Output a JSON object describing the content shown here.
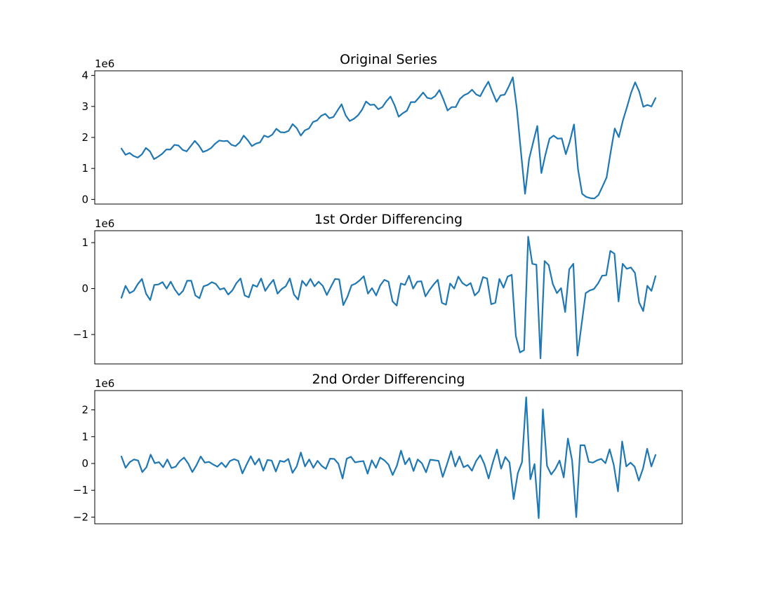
{
  "chart_data": [
    {
      "type": "line",
      "title": "Original Series",
      "offset_text": "1e6",
      "xlabel": "",
      "ylabel": "",
      "ylim": [
        -0.15,
        4.15
      ],
      "yticks": [
        0,
        1,
        2,
        3,
        4
      ],
      "ytick_labels": [
        "0",
        "1",
        "2",
        "3",
        "4"
      ],
      "grid": false,
      "color": "#1f77b4",
      "values": [
        1.64,
        1.44,
        1.5,
        1.4,
        1.35,
        1.45,
        1.66,
        1.55,
        1.3,
        1.38,
        1.47,
        1.61,
        1.61,
        1.76,
        1.74,
        1.6,
        1.55,
        1.72,
        1.89,
        1.74,
        1.53,
        1.58,
        1.66,
        1.8,
        1.9,
        1.88,
        1.89,
        1.76,
        1.72,
        1.84,
        2.06,
        1.91,
        1.72,
        1.8,
        1.84,
        2.06,
        2.01,
        2.09,
        2.28,
        2.17,
        2.16,
        2.21,
        2.43,
        2.3,
        2.06,
        2.23,
        2.29,
        2.5,
        2.55,
        2.7,
        2.76,
        2.62,
        2.66,
        2.87,
        3.07,
        2.71,
        2.53,
        2.6,
        2.71,
        2.89,
        3.16,
        3.05,
        3.06,
        2.91,
        2.98,
        3.17,
        3.32,
        3.04,
        2.67,
        2.78,
        2.86,
        3.14,
        3.14,
        3.29,
        3.45,
        3.28,
        3.25,
        3.34,
        3.53,
        3.22,
        2.87,
        2.98,
        2.98,
        3.24,
        3.36,
        3.42,
        3.54,
        3.39,
        3.33,
        3.58,
        3.8,
        3.46,
        3.15,
        3.36,
        3.38,
        3.64,
        3.94,
        2.91,
        1.52,
        0.18,
        1.31,
        1.85,
        2.37,
        0.85,
        1.45,
        1.96,
        2.06,
        1.96,
        1.97,
        1.46,
        1.88,
        2.42,
        0.96,
        0.18,
        0.08,
        0.04,
        0.03,
        0.14,
        0.42,
        0.71,
        1.53,
        2.29,
        2.01,
        2.55,
        2.98,
        3.44,
        3.78,
        3.48,
        2.99,
        3.05,
        3.0,
        3.27
      ]
    },
    {
      "type": "line",
      "title": "1st Order Differencing",
      "offset_text": "1e6",
      "xlabel": "",
      "ylabel": "",
      "ylim": [
        -1.64,
        1.26
      ],
      "yticks": [
        -1,
        0,
        1
      ],
      "ytick_labels": [
        "−1",
        "0",
        "1"
      ],
      "grid": false,
      "color": "#1f77b4",
      "values": [
        -0.2,
        0.06,
        -0.1,
        -0.05,
        0.1,
        0.21,
        -0.11,
        -0.25,
        0.08,
        0.09,
        0.14,
        0.0,
        0.15,
        -0.02,
        -0.14,
        -0.05,
        0.17,
        0.17,
        -0.15,
        -0.21,
        0.05,
        0.08,
        0.14,
        0.1,
        -0.02,
        0.01,
        -0.13,
        -0.04,
        0.12,
        0.22,
        -0.15,
        -0.19,
        0.08,
        0.04,
        0.22,
        -0.05,
        0.08,
        0.19,
        -0.11,
        -0.01,
        0.05,
        0.22,
        -0.13,
        -0.24,
        0.17,
        0.06,
        0.21,
        0.05,
        0.15,
        0.06,
        -0.14,
        0.04,
        0.21,
        0.2,
        -0.36,
        -0.18,
        0.07,
        0.11,
        0.18,
        0.27,
        -0.11,
        0.01,
        -0.15,
        0.07,
        0.19,
        0.15,
        -0.28,
        -0.37,
        0.11,
        0.08,
        0.28,
        0.0,
        0.15,
        0.16,
        -0.17,
        -0.03,
        0.09,
        0.19,
        -0.31,
        -0.35,
        0.11,
        0.0,
        0.26,
        0.12,
        0.06,
        0.12,
        -0.15,
        -0.06,
        0.25,
        0.22,
        -0.34,
        -0.31,
        0.21,
        0.02,
        0.26,
        0.3,
        -1.03,
        -1.39,
        -1.34,
        1.13,
        0.54,
        0.52,
        -1.52,
        0.6,
        0.51,
        0.1,
        -0.1,
        0.01,
        -0.51,
        0.42,
        0.54,
        -1.46,
        -0.78,
        -0.1,
        -0.04,
        -0.01,
        0.11,
        0.28,
        0.29,
        0.82,
        0.76,
        -0.28,
        0.54,
        0.43,
        0.46,
        0.34,
        -0.3,
        -0.49,
        0.06,
        -0.05,
        0.27
      ]
    },
    {
      "type": "line",
      "title": "2nd Order Differencing",
      "offset_text": "1e6",
      "xlabel": "",
      "ylabel": "",
      "ylim": [
        -2.25,
        2.72
      ],
      "yticks": [
        -2,
        -1,
        0,
        1,
        2
      ],
      "ytick_labels": [
        "−2",
        "−1",
        "0",
        "1",
        "2"
      ],
      "grid": false,
      "color": "#1f77b4",
      "values": [
        0.26,
        -0.16,
        0.05,
        0.15,
        0.11,
        -0.32,
        -0.14,
        0.33,
        0.01,
        0.05,
        -0.14,
        0.15,
        -0.17,
        -0.12,
        0.09,
        0.22,
        0.0,
        -0.32,
        -0.06,
        0.26,
        0.03,
        0.06,
        -0.04,
        -0.12,
        0.03,
        -0.14,
        0.09,
        0.16,
        0.1,
        -0.37,
        -0.04,
        0.27,
        -0.04,
        0.18,
        -0.27,
        0.13,
        0.11,
        -0.3,
        0.1,
        0.06,
        0.17,
        -0.35,
        -0.11,
        0.41,
        -0.11,
        0.15,
        -0.16,
        0.1,
        -0.09,
        -0.2,
        0.18,
        0.17,
        -0.01,
        -0.56,
        0.18,
        0.25,
        0.04,
        0.07,
        0.09,
        -0.38,
        0.12,
        -0.16,
        0.22,
        0.12,
        -0.04,
        -0.43,
        -0.09,
        0.48,
        -0.03,
        0.2,
        -0.28,
        0.15,
        0.01,
        -0.33,
        0.14,
        0.12,
        0.1,
        -0.5,
        -0.04,
        0.46,
        -0.11,
        0.26,
        -0.14,
        -0.06,
        -0.27,
        0.09,
        0.31,
        -0.03,
        -0.56,
        0.03,
        0.52,
        -0.19,
        0.24,
        0.04,
        -1.33,
        -0.36,
        0.05,
        2.47,
        -0.59,
        -0.02,
        -2.04,
        2.02,
        -0.09,
        -0.41,
        -0.2,
        0.11,
        -0.52,
        0.93,
        0.12,
        -2.0,
        0.68,
        0.68,
        0.06,
        0.03,
        0.12,
        0.17,
        0.01,
        0.53,
        -0.06,
        -1.04,
        0.82,
        -0.11,
        0.03,
        -0.12,
        -0.64,
        -0.19,
        0.55,
        -0.11,
        0.32
      ]
    }
  ]
}
